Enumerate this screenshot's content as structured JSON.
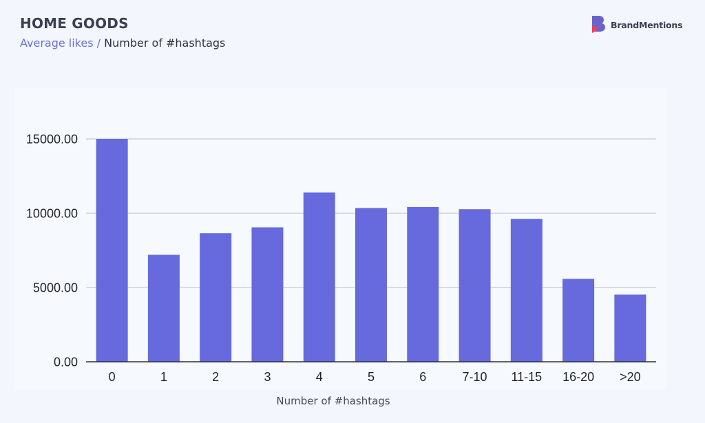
{
  "header": {
    "title": "HOME GOODS",
    "subtitle_metric": "Average likes",
    "subtitle_separator": " / ",
    "subtitle_dimension": "Number of #hashtags"
  },
  "brand": {
    "name": "BrandMentions",
    "logo_icon": "brandmentions-logo-icon"
  },
  "chart_data": {
    "type": "bar",
    "categories": [
      "0",
      "1",
      "2",
      "3",
      "4",
      "5",
      "6",
      "7-10",
      "11-15",
      "16-20",
      ">20"
    ],
    "values": [
      15000,
      7200,
      8650,
      9050,
      11400,
      10350,
      10420,
      10270,
      9620,
      5580,
      4520
    ],
    "xlabel": "Number of #hashtags",
    "ylabel": "",
    "ylim": [
      0,
      15000
    ],
    "yticks": [
      0,
      5000,
      10000,
      15000
    ],
    "ytick_labels": [
      "0.00",
      "5000.00",
      "10000.00",
      "15000.00"
    ],
    "grid": true,
    "legend": "none",
    "bar_color": "#666adc"
  }
}
